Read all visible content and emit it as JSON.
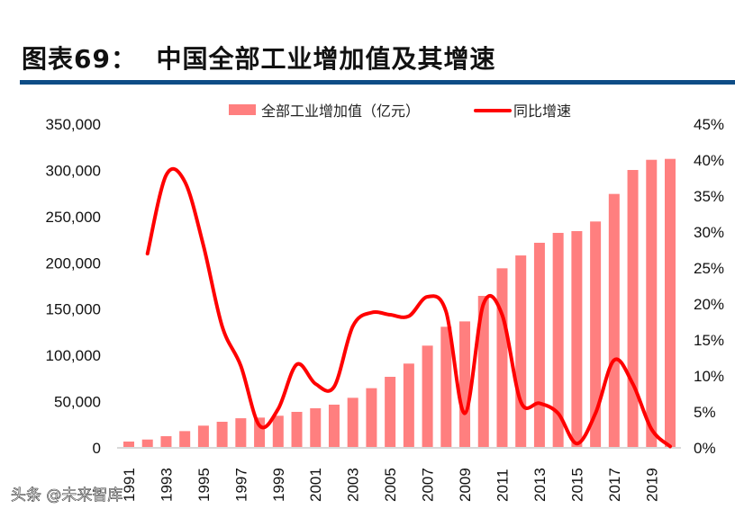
{
  "header": {
    "title": "图表69：  中国全部工业增加值及其增速"
  },
  "watermark": "头条 @未来智库",
  "chart_data": {
    "type": "bar+line",
    "title": "",
    "categories": [
      1991,
      1992,
      1993,
      1994,
      1995,
      1996,
      1997,
      1998,
      1999,
      2000,
      2001,
      2002,
      2003,
      2004,
      2005,
      2006,
      2007,
      2008,
      2009,
      2010,
      2011,
      2012,
      2013,
      2014,
      2015,
      2016,
      2017,
      2018,
      2019,
      2020
    ],
    "x_tick_labels": [
      "1991",
      "1993",
      "1995",
      "1997",
      "1999",
      "2001",
      "2003",
      "2005",
      "2007",
      "2009",
      "2011",
      "2013",
      "2015",
      "2017",
      "2019"
    ],
    "series": [
      {
        "name": "全部工业增加值（亿元）",
        "type": "bar",
        "axis": "left",
        "color": "#FF7F7F",
        "values": [
          6800,
          9000,
          12600,
          18100,
          24000,
          28200,
          32000,
          32700,
          34700,
          38900,
          42800,
          46700,
          54100,
          64500,
          76800,
          91100,
          110500,
          130900,
          136700,
          164300,
          194100,
          208000,
          221700,
          232400,
          234300,
          244700,
          274500,
          300400,
          311400,
          312400
        ]
      },
      {
        "name": "同比增速",
        "type": "line",
        "axis": "right",
        "color": "#FF0000",
        "values": [
          null,
          27.0,
          37.9,
          37.0,
          28.1,
          16.9,
          11.4,
          3.1,
          5.4,
          11.6,
          8.9,
          8.5,
          16.9,
          18.8,
          18.5,
          18.3,
          21.0,
          18.9,
          4.8,
          20.0,
          18.5,
          6.4,
          6.2,
          4.8,
          0.6,
          4.8,
          12.2,
          8.9,
          2.6,
          0.2
        ]
      }
    ],
    "y_left": {
      "ylim": [
        0,
        350000
      ],
      "tick_labels": [
        "0",
        "50,000",
        "100,000",
        "150,000",
        "200,000",
        "250,000",
        "300,000",
        "350,000"
      ]
    },
    "y_right": {
      "ylim": [
        0,
        45
      ],
      "tick_labels": [
        "0%",
        "5%",
        "10%",
        "15%",
        "20%",
        "25%",
        "30%",
        "35%",
        "40%",
        "45%"
      ]
    },
    "grid": false,
    "legend": "top-center"
  }
}
